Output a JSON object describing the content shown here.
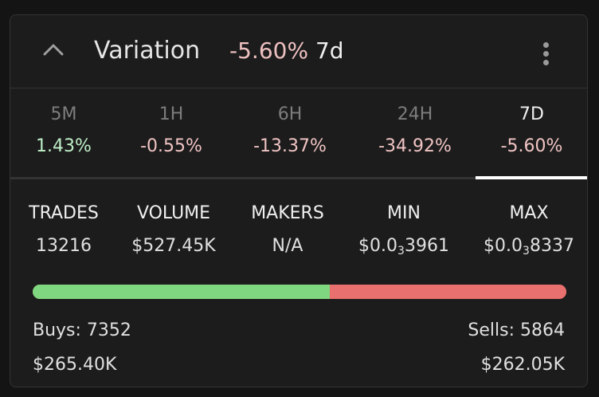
{
  "header": {
    "title": "Variation",
    "change_value": "-5.60%",
    "change_period": "7d"
  },
  "tabs": [
    {
      "label": "5M",
      "value": "1.43%",
      "trend": "up"
    },
    {
      "label": "1H",
      "value": "-0.55%",
      "trend": "down"
    },
    {
      "label": "6H",
      "value": "-13.37%",
      "trend": "down"
    },
    {
      "label": "24H",
      "value": "-34.92%",
      "trend": "down"
    },
    {
      "label": "7D",
      "value": "-5.60%",
      "trend": "down",
      "active": true
    }
  ],
  "stats": {
    "trades": {
      "label": "TRADES",
      "value": "13216"
    },
    "volume": {
      "label": "VOLUME",
      "value": "$527.45K"
    },
    "makers": {
      "label": "MAKERS",
      "value": "N/A"
    },
    "min": {
      "label": "MIN",
      "prefix": "$0.0",
      "zeros": "3",
      "digits": "3961"
    },
    "max": {
      "label": "MAX",
      "prefix": "$0.0",
      "zeros": "3",
      "digits": "8337"
    }
  },
  "buy_sell": {
    "buy_fraction": 0.5563,
    "buy_color": "#7fd77f",
    "sell_color": "#e8706e",
    "buys_label": "Buys: 7352",
    "buys_amount": "$265.40K",
    "sells_label": "Sells: 5864",
    "sells_amount": "$262.05K"
  },
  "icons": {
    "collapse": "chevron-up-icon",
    "menu": "more-vertical-icon"
  }
}
